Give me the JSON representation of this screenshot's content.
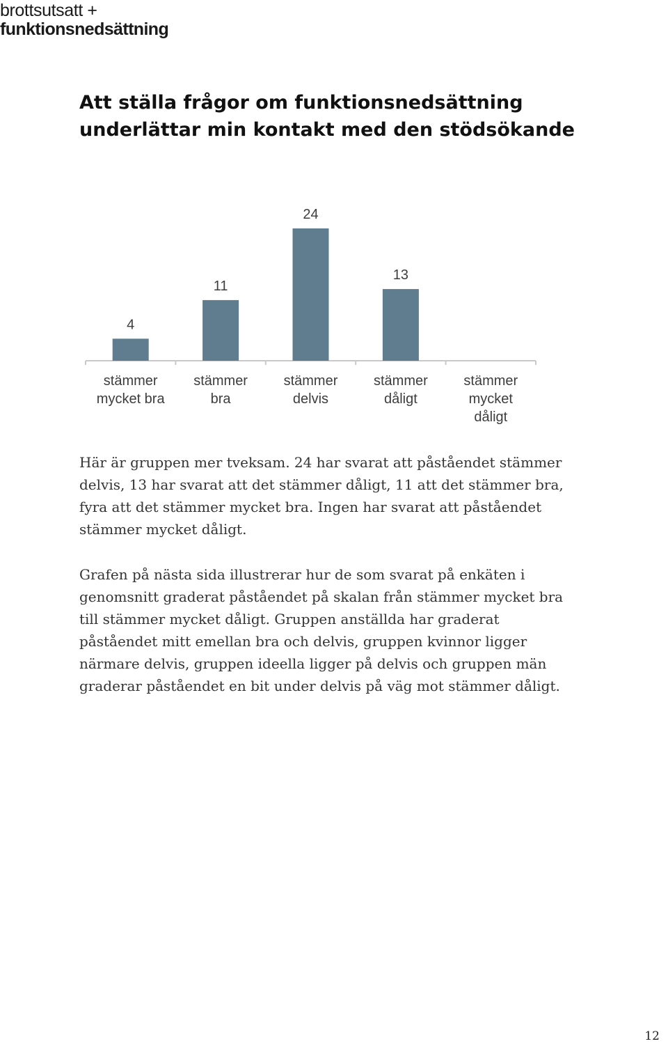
{
  "logo": {
    "line1": "brottsutsatt +",
    "line2": "funktionsnedsättning"
  },
  "heading": "Att ställa frågor om funktionsnedsättning underlättar min kontakt med den stödsökande",
  "chart_data": {
    "type": "bar",
    "categories": [
      [
        "stämmer",
        "mycket bra"
      ],
      [
        "stämmer",
        "bra"
      ],
      [
        "stämmer",
        "delvis"
      ],
      [
        "stämmer",
        "dåligt"
      ],
      [
        "stämmer",
        "mycket",
        "dåligt"
      ]
    ],
    "values": [
      4,
      11,
      24,
      13,
      null
    ],
    "data_labels": [
      "4",
      "11",
      "24",
      "13",
      ""
    ],
    "bar_color": "#5f7d8f",
    "axis_color": "#c9c9c9",
    "label_color": "#3d3d3d",
    "ylim": [
      0,
      24
    ],
    "grid": false,
    "legend": "none"
  },
  "paragraphs": [
    "Här är gruppen mer tveksam. 24 har svarat att påståendet stämmer delvis, 13 har svarat att det stämmer dåligt, 11 att det stämmer bra, fyra att det stämmer mycket bra. Ingen har svarat att påståendet stämmer mycket dåligt.",
    "Grafen på nästa sida illustrerar hur de som svarat på enkäten i genomsnitt graderat påståendet på skalan från stämmer mycket bra till stämmer mycket dåligt. Gruppen anställda har graderat påståendet mitt emellan bra och delvis, gruppen kvinnor ligger närmare delvis, gruppen ideella ligger på delvis och gruppen män graderar påståendet en bit under delvis på väg mot stämmer dåligt."
  ],
  "page_number": "12"
}
